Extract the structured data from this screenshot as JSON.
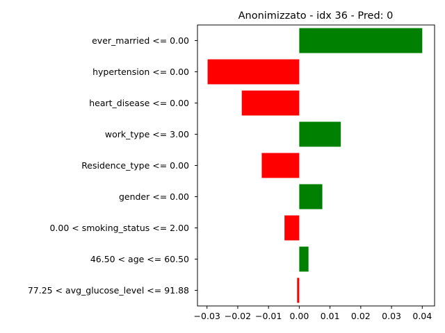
{
  "chart_data": {
    "type": "bar",
    "orientation": "horizontal",
    "title": "Anonimizzato - idx 36 - Pred: 0",
    "xlabel": "",
    "ylabel": "",
    "categories": [
      "ever_married <= 0.00",
      "hypertension <= 0.00",
      "heart_disease <= 0.00",
      "work_type <= 3.00",
      "Residence_type <= 0.00",
      "gender <= 0.00",
      "0.00 < smoking_status <= 2.00",
      "46.50 < age <= 60.50",
      "77.25 < avg_glucose_level <= 91.88"
    ],
    "values": [
      0.04,
      -0.0298,
      -0.0187,
      0.0135,
      -0.0122,
      0.0075,
      -0.0048,
      0.003,
      -0.0007
    ],
    "xlim": [
      -0.0331,
      0.044
    ],
    "xticks": [
      -0.03,
      -0.02,
      -0.01,
      0.0,
      0.01,
      0.02,
      0.03,
      0.04
    ],
    "xtick_labels": [
      "−0.03",
      "−0.02",
      "−0.01",
      "0.00",
      "0.01",
      "0.02",
      "0.03",
      "0.04"
    ],
    "grid": false,
    "colors": {
      "positive": "#008000",
      "negative": "#ff0000"
    }
  }
}
